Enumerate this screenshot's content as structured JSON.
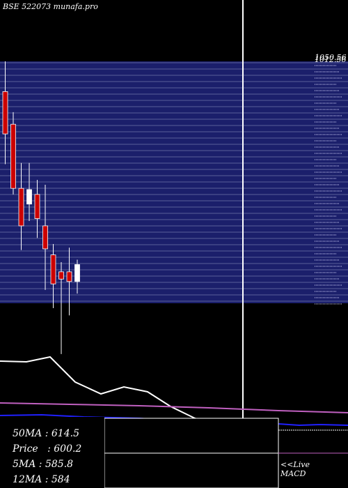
{
  "header": {
    "title": "BSE 522073 munafa.pro"
  },
  "info_box": {
    "rows": [
      {
        "label": "50MA",
        "value": "614.5"
      },
      {
        "label": "Price",
        "value": "600.2"
      },
      {
        "label": "5MA",
        "value": "585.8"
      },
      {
        "label": "12MA",
        "value": "584"
      }
    ]
  },
  "macd": {
    "link_label": "<<Live",
    "label": "MACD"
  },
  "colors": {
    "background": "#000000",
    "price_panel": "#1b1f6b",
    "grid": "#5a5f9a",
    "bear": "#cc0000",
    "bull": "#ffffff",
    "wick": "#ffffff",
    "ma_white": "#ffffff",
    "ma_magenta": "#c060c0",
    "ma_blue": "#2020ff"
  },
  "chart_data": {
    "type": "candlestick",
    "title": "BSE 522073 munafa.pro",
    "ylim": [
      560,
      760
    ],
    "price_scale_labels": [
      "1050.56",
      "1012.56"
    ],
    "candles": [
      {
        "open": 735,
        "high": 760,
        "low": 675,
        "close": 700
      },
      {
        "open": 708,
        "high": 718,
        "low": 650,
        "close": 655
      },
      {
        "open": 655,
        "high": 676,
        "low": 604,
        "close": 624
      },
      {
        "open": 642,
        "high": 676,
        "low": 628,
        "close": 654
      },
      {
        "open": 650,
        "high": 662,
        "low": 614,
        "close": 630
      },
      {
        "open": 624,
        "high": 658,
        "low": 571,
        "close": 605
      },
      {
        "open": 600,
        "high": 609,
        "low": 556,
        "close": 576
      },
      {
        "open": 586,
        "high": 594,
        "low": 518,
        "close": 580
      },
      {
        "open": 586,
        "high": 606,
        "low": 550,
        "close": 578
      },
      {
        "open": 578,
        "high": 596,
        "low": 568,
        "close": 592
      }
    ],
    "moving_averages": [
      {
        "label": "50MA",
        "value": 614.5
      },
      {
        "label": "5MA",
        "value": 585.8
      },
      {
        "label": "12MA",
        "value": 584
      }
    ],
    "last_price": 600.2
  }
}
